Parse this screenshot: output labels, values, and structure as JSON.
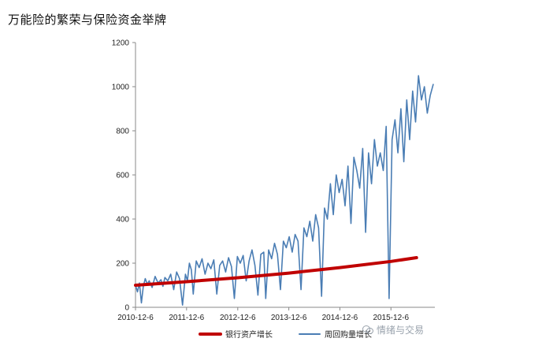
{
  "page": {
    "title": "万能险的繁荣与保险资金举牌"
  },
  "watermark": {
    "text": "情绪与交易",
    "icon": "wechat-icon"
  },
  "chart_data": {
    "type": "line",
    "title": "",
    "xlabel": "",
    "ylabel": "",
    "ylim": [
      0,
      1200
    ],
    "yticks": [
      0,
      200,
      400,
      600,
      800,
      1000,
      1200
    ],
    "xlim": [
      "2010-12-06",
      "2016-10-15"
    ],
    "xticks": [
      "2010-12-6",
      "2011-12-6",
      "2012-12-6",
      "2013-12-6",
      "2014-12-6",
      "2015-12-6"
    ],
    "grid": false,
    "legend_position": "bottom",
    "series": [
      {
        "name": "银行资产增长",
        "color": "#c00000",
        "x": [
          "2010-12-06",
          "2011-12-06",
          "2012-12-06",
          "2013-12-06",
          "2014-12-06",
          "2015-12-06",
          "2016-06-06"
        ],
        "values": [
          100,
          116,
          134,
          155,
          180,
          208,
          225
        ]
      },
      {
        "name": "周回购量增长",
        "color": "#4a7db4",
        "x": [
          "2010-12-06",
          "2010-12-20",
          "2011-01-03",
          "2011-01-17",
          "2011-01-31",
          "2011-02-14",
          "2011-02-28",
          "2011-03-14",
          "2011-04-04",
          "2011-04-25",
          "2011-05-16",
          "2011-06-06",
          "2011-06-20",
          "2011-07-04",
          "2011-07-25",
          "2011-08-15",
          "2011-09-05",
          "2011-09-26",
          "2011-10-17",
          "2011-11-07",
          "2011-11-28",
          "2011-12-12",
          "2011-12-26",
          "2012-01-09",
          "2012-01-23",
          "2012-02-13",
          "2012-03-05",
          "2012-03-26",
          "2012-04-16",
          "2012-05-07",
          "2012-05-28",
          "2012-06-18",
          "2012-07-09",
          "2012-07-30",
          "2012-08-20",
          "2012-09-10",
          "2012-10-01",
          "2012-10-22",
          "2012-11-12",
          "2012-12-03",
          "2012-12-24",
          "2013-01-14",
          "2013-02-04",
          "2013-02-25",
          "2013-03-18",
          "2013-04-08",
          "2013-04-29",
          "2013-05-20",
          "2013-06-10",
          "2013-06-24",
          "2013-07-15",
          "2013-08-05",
          "2013-08-26",
          "2013-09-16",
          "2013-10-07",
          "2013-10-28",
          "2013-11-18",
          "2013-12-09",
          "2013-12-30",
          "2014-01-20",
          "2014-02-10",
          "2014-03-03",
          "2014-03-24",
          "2014-04-14",
          "2014-05-05",
          "2014-05-26",
          "2014-06-16",
          "2014-07-07",
          "2014-07-28",
          "2014-08-18",
          "2014-09-08",
          "2014-09-29",
          "2014-10-20",
          "2014-11-10",
          "2014-12-01",
          "2014-12-22",
          "2015-01-12",
          "2015-02-02",
          "2015-02-23",
          "2015-03-16",
          "2015-04-06",
          "2015-04-27",
          "2015-05-18",
          "2015-06-08",
          "2015-06-29",
          "2015-07-20",
          "2015-08-10",
          "2015-08-31",
          "2015-09-21",
          "2015-10-12",
          "2015-11-02",
          "2015-11-23",
          "2015-12-14",
          "2016-01-04",
          "2016-01-25",
          "2016-02-15",
          "2016-03-07",
          "2016-03-28",
          "2016-04-18",
          "2016-05-09",
          "2016-05-30",
          "2016-06-20",
          "2016-07-11",
          "2016-08-01",
          "2016-08-22",
          "2016-09-12",
          "2016-10-03"
        ],
        "values": [
          100,
          70,
          110,
          20,
          95,
          130,
          105,
          120,
          90,
          140,
          110,
          125,
          95,
          135,
          120,
          150,
          80,
          160,
          130,
          10,
          150,
          120,
          200,
          170,
          60,
          210,
          180,
          220,
          150,
          200,
          175,
          215,
          60,
          190,
          210,
          160,
          225,
          185,
          40,
          230,
          200,
          235,
          120,
          210,
          260,
          190,
          55,
          240,
          250,
          40,
          260,
          220,
          290,
          240,
          80,
          300,
          270,
          320,
          250,
          330,
          300,
          80,
          360,
          320,
          390,
          300,
          420,
          360,
          50,
          450,
          400,
          560,
          420,
          600,
          520,
          580,
          460,
          640,
          380,
          680,
          620,
          540,
          720,
          340,
          700,
          560,
          760,
          640,
          700,
          620,
          820,
          40,
          760,
          850,
          700,
          900,
          660,
          940,
          760,
          980,
          840,
          1050,
          940,
          1000,
          880,
          960,
          1010
        ]
      }
    ]
  }
}
